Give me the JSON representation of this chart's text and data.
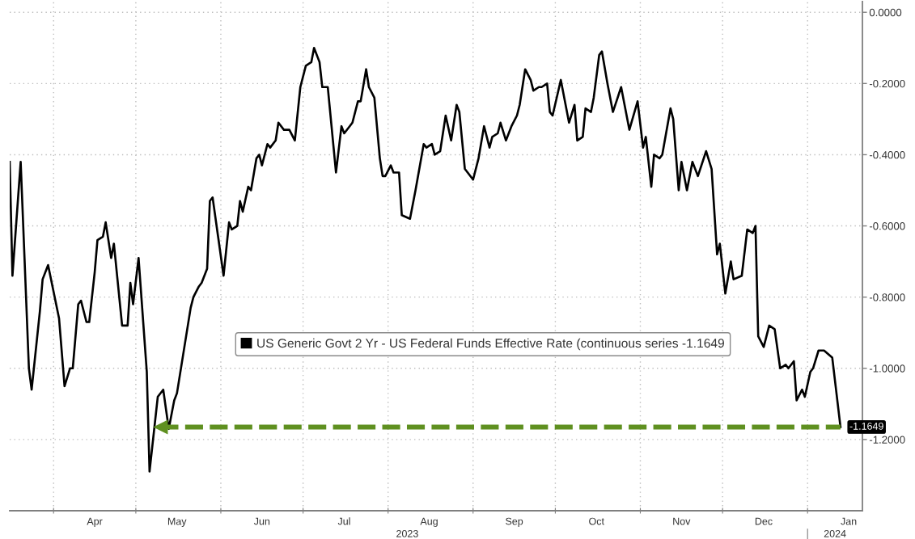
{
  "chart_data": {
    "type": "line",
    "xlim": [
      "2023-03-16",
      "2024-01-21"
    ],
    "xticks": [
      {
        "value": "2023-04-01",
        "label": null
      },
      {
        "value": "2023-04-16",
        "label": "Apr"
      },
      {
        "value": "2023-05-01",
        "label": null
      },
      {
        "value": "2023-05-16",
        "label": "May"
      },
      {
        "value": "2023-06-01",
        "label": null
      },
      {
        "value": "2023-06-16",
        "label": "Jun"
      },
      {
        "value": "2023-07-01",
        "label": null
      },
      {
        "value": "2023-07-16",
        "label": "Jul"
      },
      {
        "value": "2023-08-01",
        "label": null
      },
      {
        "value": "2023-08-16",
        "label": "Aug"
      },
      {
        "value": "2023-09-01",
        "label": null
      },
      {
        "value": "2023-09-16",
        "label": "Sep"
      },
      {
        "value": "2023-10-01",
        "label": null
      },
      {
        "value": "2023-10-16",
        "label": "Oct"
      },
      {
        "value": "2023-11-01",
        "label": null
      },
      {
        "value": "2023-11-16",
        "label": "Nov"
      },
      {
        "value": "2023-12-01",
        "label": null
      },
      {
        "value": "2023-12-16",
        "label": "Dec"
      },
      {
        "value": "2024-01-01",
        "label": null
      },
      {
        "value": "2024-01-16",
        "label": "Jan"
      }
    ],
    "x2lim": [
      "2023-03-16",
      "2024-01-21"
    ],
    "x2ticks": [
      {
        "value": "2023-08-08",
        "label": "2023"
      },
      {
        "value": "2024-01-01",
        "label": null
      },
      {
        "value": "2024-01-11",
        "label": "2024"
      }
    ],
    "ylim": [
      -1.4,
      0.03
    ],
    "yticks": [
      {
        "value": 0,
        "label": "0.0000"
      },
      {
        "value": -0.2,
        "label": "-0.2000"
      },
      {
        "value": -0.4,
        "label": "-0.4000"
      },
      {
        "value": -0.6,
        "label": "-0.6000"
      },
      {
        "value": -0.8,
        "label": "-0.8000"
      },
      {
        "value": -1.0,
        "label": "-1.0000"
      },
      {
        "value": -1.2,
        "label": "-1.2000"
      }
    ],
    "grid": true,
    "legend": "center",
    "series": [
      {
        "name": "US Generic Govt 2 Yr - US Federal Funds Effective Rate (continuous series -1.1649",
        "color": "#000000",
        "line_style": "solid",
        "x": [
          "2023-03-16",
          "2023-03-17",
          "2023-03-20",
          "2023-03-23",
          "2023-03-24",
          "2023-03-27",
          "2023-03-28",
          "2023-03-30",
          "2023-04-03",
          "2023-04-05",
          "2023-04-07",
          "2023-04-08",
          "2023-04-10",
          "2023-04-11",
          "2023-04-13",
          "2023-04-14",
          "2023-04-16",
          "2023-04-17",
          "2023-04-19",
          "2023-04-20",
          "2023-04-22",
          "2023-04-23",
          "2023-04-26",
          "2023-04-28",
          "2023-04-29",
          "2023-04-30",
          "2023-05-02",
          "2023-05-05",
          "2023-05-06",
          "2023-05-09",
          "2023-05-11",
          "2023-05-13",
          "2023-05-15",
          "2023-05-16",
          "2023-05-21",
          "2023-05-22",
          "2023-05-24",
          "2023-05-25",
          "2023-05-27",
          "2023-05-28",
          "2023-05-29",
          "2023-05-31",
          "2023-06-02",
          "2023-06-04",
          "2023-06-05",
          "2023-06-07",
          "2023-06-08",
          "2023-06-09",
          "2023-06-11",
          "2023-06-12",
          "2023-06-14",
          "2023-06-15",
          "2023-06-16",
          "2023-06-18",
          "2023-06-19",
          "2023-06-21",
          "2023-06-22",
          "2023-06-24",
          "2023-06-26",
          "2023-06-28",
          "2023-06-30",
          "2023-07-02",
          "2023-07-04",
          "2023-07-05",
          "2023-07-07",
          "2023-07-08",
          "2023-07-10",
          "2023-07-13",
          "2023-07-15",
          "2023-07-16",
          "2023-07-18",
          "2023-07-19",
          "2023-07-21",
          "2023-07-22",
          "2023-07-24",
          "2023-07-25",
          "2023-07-27",
          "2023-07-29",
          "2023-07-30",
          "2023-07-31",
          "2023-08-02",
          "2023-08-03",
          "2023-08-05",
          "2023-08-06",
          "2023-08-09",
          "2023-08-11",
          "2023-08-14",
          "2023-08-15",
          "2023-08-17",
          "2023-08-18",
          "2023-08-20",
          "2023-08-22",
          "2023-08-24",
          "2023-08-26",
          "2023-08-27",
          "2023-08-29",
          "2023-09-01",
          "2023-09-03",
          "2023-09-05",
          "2023-09-07",
          "2023-09-08",
          "2023-09-10",
          "2023-09-11",
          "2023-09-13",
          "2023-09-15",
          "2023-09-17",
          "2023-09-18",
          "2023-09-20",
          "2023-09-22",
          "2023-09-23",
          "2023-09-25",
          "2023-09-26",
          "2023-09-28",
          "2023-09-29",
          "2023-09-30",
          "2023-10-03",
          "2023-10-06",
          "2023-10-08",
          "2023-10-09",
          "2023-10-11",
          "2023-10-12",
          "2023-10-14",
          "2023-10-15",
          "2023-10-17",
          "2023-10-18",
          "2023-10-20",
          "2023-10-22",
          "2023-10-25",
          "2023-10-28",
          "2023-10-31",
          "2023-11-02",
          "2023-11-03",
          "2023-11-05",
          "2023-11-06",
          "2023-11-08",
          "2023-11-09",
          "2023-11-12",
          "2023-11-13",
          "2023-11-15",
          "2023-11-16",
          "2023-11-18",
          "2023-11-20",
          "2023-11-22",
          "2023-11-25",
          "2023-11-27",
          "2023-11-29",
          "2023-11-30",
          "2023-12-02",
          "2023-12-04",
          "2023-12-05",
          "2023-12-08",
          "2023-12-10",
          "2023-12-12",
          "2023-12-13",
          "2023-12-14",
          "2023-12-16",
          "2023-12-18",
          "2023-12-20",
          "2023-12-22",
          "2023-12-24",
          "2023-12-25",
          "2023-12-27",
          "2023-12-28",
          "2023-12-30",
          "2023-12-31",
          "2024-01-02",
          "2024-01-03",
          "2024-01-05",
          "2024-01-07",
          "2024-01-10",
          "2024-01-13"
        ],
        "values": [
          -0.42,
          -0.74,
          -0.42,
          -1.0,
          -1.06,
          -0.84,
          -0.75,
          -0.71,
          -0.86,
          -1.05,
          -1.0,
          -1.0,
          -0.82,
          -0.81,
          -0.87,
          -0.87,
          -0.73,
          -0.64,
          -0.63,
          -0.59,
          -0.69,
          -0.65,
          -0.88,
          -0.88,
          -0.76,
          -0.82,
          -0.69,
          -1.01,
          -1.29,
          -1.08,
          -1.06,
          -1.17,
          -1.09,
          -1.07,
          -0.83,
          -0.8,
          -0.77,
          -0.76,
          -0.72,
          -0.53,
          -0.52,
          -0.63,
          -0.74,
          -0.59,
          -0.61,
          -0.6,
          -0.53,
          -0.56,
          -0.49,
          -0.5,
          -0.41,
          -0.4,
          -0.43,
          -0.37,
          -0.38,
          -0.36,
          -0.31,
          -0.33,
          -0.33,
          -0.36,
          -0.21,
          -0.15,
          -0.14,
          -0.1,
          -0.14,
          -0.21,
          -0.21,
          -0.45,
          -0.32,
          -0.34,
          -0.32,
          -0.31,
          -0.25,
          -0.25,
          -0.16,
          -0.21,
          -0.24,
          -0.41,
          -0.46,
          -0.46,
          -0.43,
          -0.45,
          -0.45,
          -0.57,
          -0.58,
          -0.5,
          -0.37,
          -0.38,
          -0.37,
          -0.4,
          -0.39,
          -0.29,
          -0.36,
          -0.26,
          -0.28,
          -0.44,
          -0.47,
          -0.41,
          -0.32,
          -0.38,
          -0.35,
          -0.34,
          -0.31,
          -0.36,
          -0.32,
          -0.29,
          -0.26,
          -0.16,
          -0.19,
          -0.22,
          -0.21,
          -0.21,
          -0.2,
          -0.28,
          -0.29,
          -0.19,
          -0.31,
          -0.26,
          -0.36,
          -0.35,
          -0.27,
          -0.28,
          -0.24,
          -0.12,
          -0.11,
          -0.2,
          -0.28,
          -0.21,
          -0.33,
          -0.25,
          -0.38,
          -0.35,
          -0.49,
          -0.4,
          -0.41,
          -0.4,
          -0.27,
          -0.3,
          -0.5,
          -0.42,
          -0.5,
          -0.42,
          -0.46,
          -0.39,
          -0.44,
          -0.68,
          -0.65,
          -0.79,
          -0.7,
          -0.75,
          -0.74,
          -0.61,
          -0.62,
          -0.6,
          -0.91,
          -0.94,
          -0.88,
          -0.89,
          -1.0,
          -0.99,
          -1.0,
          -0.98,
          -1.09,
          -1.06,
          -1.08,
          -1.01,
          -1.0,
          -0.95,
          -0.95,
          -0.97,
          -1.1649
        ],
        "value_labels": [
          null,
          null,
          null,
          null,
          null,
          null,
          null,
          null,
          null,
          null,
          null,
          null,
          null,
          null,
          null,
          null,
          null,
          null,
          null,
          null,
          null,
          null,
          null,
          null,
          null,
          null,
          null,
          null,
          null,
          null,
          null,
          null,
          null,
          null,
          null,
          null,
          null,
          null,
          null,
          null,
          null,
          null,
          null,
          null,
          null,
          null,
          null,
          null,
          null,
          null,
          null,
          null,
          null,
          null,
          null,
          null,
          null,
          null,
          null,
          null,
          null,
          null,
          null,
          null,
          null,
          null,
          null,
          null,
          null,
          null,
          null,
          null,
          null,
          null,
          null,
          null,
          null,
          null,
          null,
          null,
          null,
          null,
          null,
          null,
          null,
          null,
          null,
          null,
          null,
          null,
          null,
          null,
          null,
          null,
          null,
          null,
          null,
          null,
          null,
          null,
          null,
          null,
          null,
          null,
          null,
          null,
          null,
          null,
          null,
          null,
          null,
          null,
          null,
          null,
          null,
          null,
          null,
          null,
          null,
          null,
          null,
          null,
          null,
          null,
          null,
          null,
          null,
          null,
          null,
          null,
          null,
          null,
          null,
          null,
          null,
          null,
          null,
          null,
          null,
          null,
          null,
          null,
          null,
          null,
          null,
          null,
          null,
          null,
          null,
          null,
          null,
          null,
          null,
          null,
          null,
          null,
          null,
          null,
          null,
          null,
          null,
          null,
          null,
          null,
          null,
          null,
          null,
          null,
          null,
          null,
          "-1.1649"
        ]
      },
      {
        "color": "#5f9020",
        "line_style": "dashed",
        "marker": "triangle",
        "x": [
          "2023-05-10",
          "2024-01-13"
        ],
        "values": [
          -1.1649,
          -1.1649
        ]
      }
    ]
  }
}
